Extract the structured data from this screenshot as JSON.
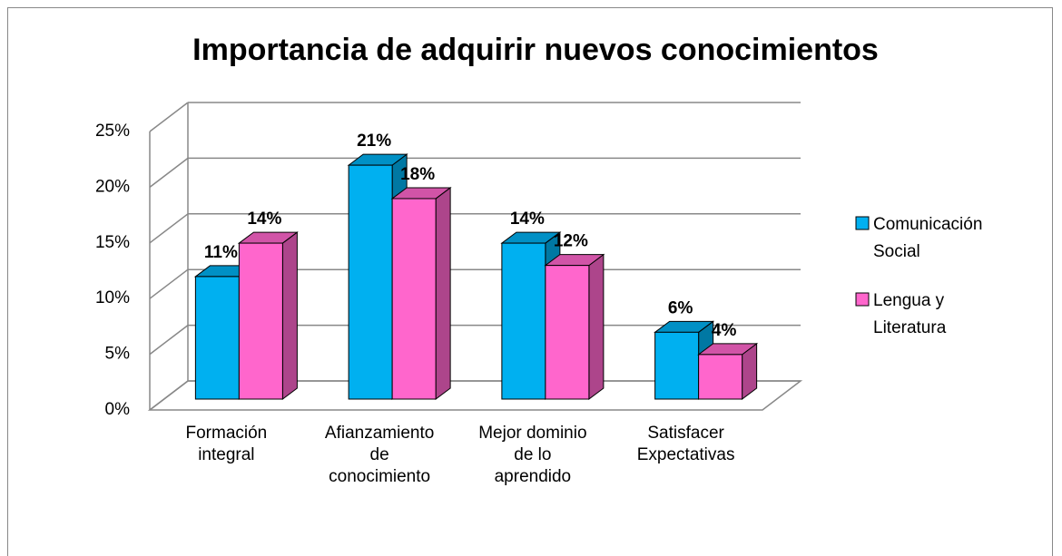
{
  "chart_data": {
    "type": "bar3d",
    "title": "Importancia de adquirir nuevos conocimientos",
    "categories": [
      "Formación integral",
      "Afianzamiento de conocimiento",
      "Mejor dominio de lo aprendido",
      "Satisfacer Expectativas"
    ],
    "series": [
      {
        "name": "Comunicación Social",
        "color": "#00b0f0",
        "values": [
          11,
          21,
          14,
          6
        ],
        "value_labels": [
          "11%",
          "21%",
          "14%",
          "6%"
        ]
      },
      {
        "name": "Lengua y Literatura",
        "color": "#ff66cc",
        "values": [
          14,
          18,
          12,
          4
        ],
        "value_labels": [
          "14%",
          "18%",
          "12%",
          "4%"
        ]
      }
    ],
    "ylim": [
      0,
      25
    ],
    "yticks": [
      {
        "value": 0,
        "label": "0%"
      },
      {
        "value": 5,
        "label": "5%"
      },
      {
        "value": 10,
        "label": "10%"
      },
      {
        "value": 15,
        "label": "15%"
      },
      {
        "value": 20,
        "label": "20%"
      },
      {
        "value": 25,
        "label": "25%"
      }
    ],
    "grid": true,
    "legend": "right"
  }
}
